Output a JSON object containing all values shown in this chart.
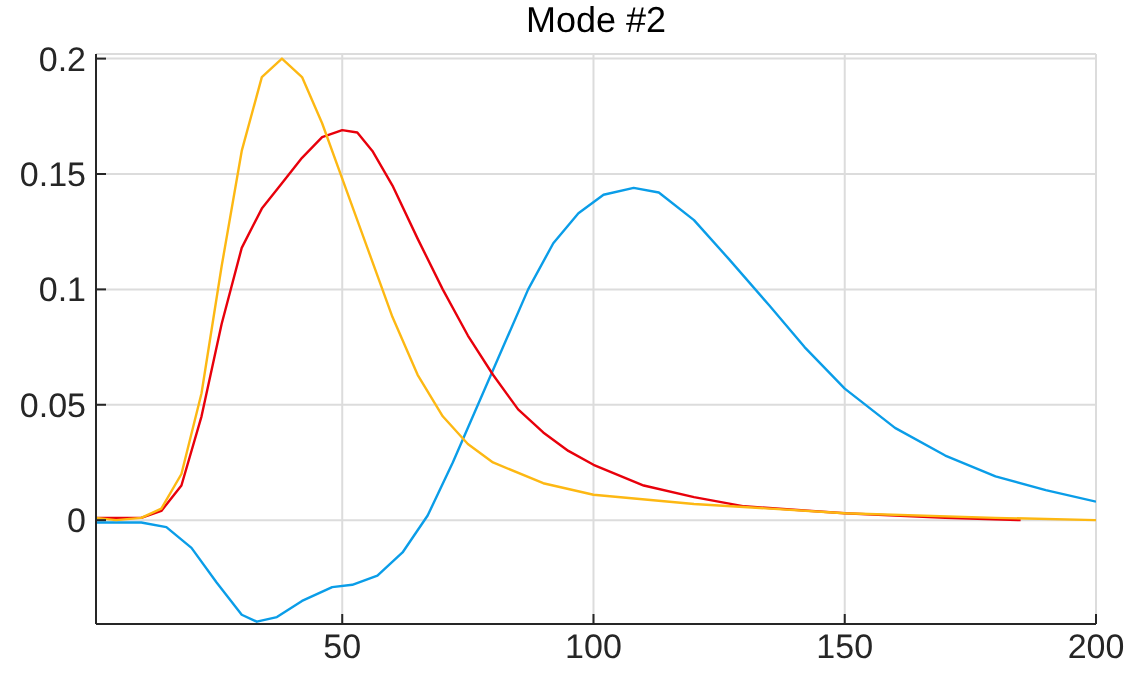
{
  "chart_data": {
    "type": "line",
    "title": "Mode #2",
    "xlim": [
      1,
      200
    ],
    "xticks": [
      50,
      100,
      150,
      200
    ],
    "ylim": [
      -0.045,
      0.202
    ],
    "yticks": [
      0,
      0.05,
      0.1,
      0.15,
      0.2
    ],
    "grid": true,
    "marker": "none",
    "line_style": "solid",
    "series": [
      {
        "color": "#0a9de8",
        "x": [
          1,
          10,
          15,
          20,
          25,
          30,
          33,
          37,
          42,
          48,
          52,
          57,
          62,
          67,
          72,
          77,
          82,
          87,
          92,
          97,
          102,
          108,
          113,
          120,
          127,
          135,
          142,
          150,
          160,
          170,
          180,
          190,
          200
        ],
        "values": [
          -0.001,
          -0.001,
          -0.003,
          -0.012,
          -0.027,
          -0.041,
          -0.044,
          -0.042,
          -0.035,
          -0.029,
          -0.028,
          -0.024,
          -0.014,
          0.002,
          0.025,
          0.05,
          0.075,
          0.1,
          0.12,
          0.133,
          0.141,
          0.144,
          0.142,
          0.13,
          0.113,
          0.093,
          0.075,
          0.057,
          0.04,
          0.028,
          0.019,
          0.013,
          0.008
        ]
      },
      {
        "color": "#e8000b",
        "x": [
          1,
          10,
          14,
          18,
          22,
          26,
          30,
          34,
          38,
          42,
          46,
          50,
          53,
          56,
          60,
          65,
          70,
          75,
          80,
          85,
          90,
          95,
          100,
          110,
          120,
          130,
          150,
          170,
          185
        ],
        "values": [
          0.001,
          0.001,
          0.004,
          0.015,
          0.045,
          0.085,
          0.118,
          0.135,
          0.146,
          0.157,
          0.166,
          0.169,
          0.168,
          0.16,
          0.145,
          0.122,
          0.1,
          0.08,
          0.063,
          0.048,
          0.038,
          0.03,
          0.024,
          0.015,
          0.01,
          0.006,
          0.003,
          0.001,
          0
        ]
      },
      {
        "color": "#fdb813",
        "x": [
          1,
          5,
          10,
          14,
          18,
          22,
          26,
          30,
          34,
          38,
          42,
          46,
          50,
          55,
          60,
          65,
          70,
          75,
          80,
          90,
          100,
          120,
          150,
          180,
          200
        ],
        "values": [
          0.001,
          0,
          0.001,
          0.005,
          0.02,
          0.055,
          0.11,
          0.16,
          0.192,
          0.2,
          0.192,
          0.172,
          0.148,
          0.118,
          0.088,
          0.063,
          0.045,
          0.033,
          0.025,
          0.016,
          0.011,
          0.007,
          0.003,
          0.001,
          0
        ]
      }
    ]
  }
}
